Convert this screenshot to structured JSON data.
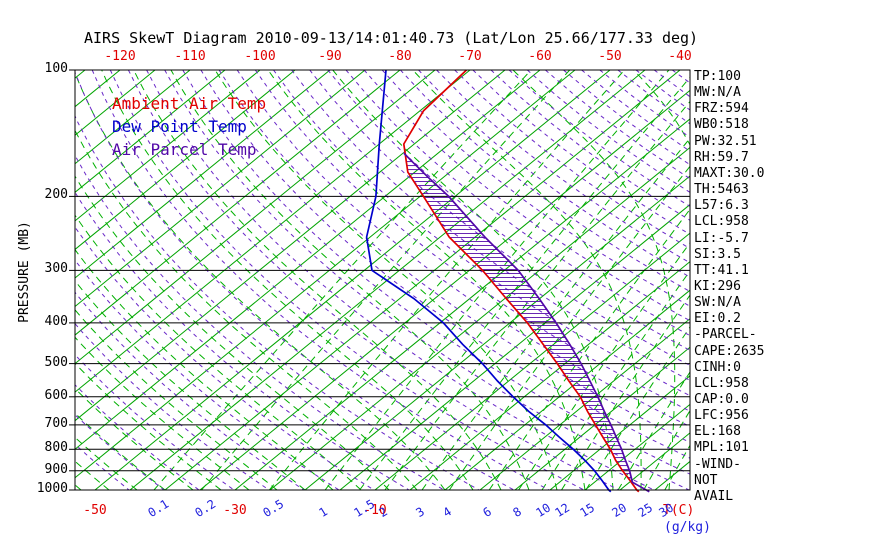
{
  "title": "AIRS SkewT Diagram 2010-09-13/14:01:40.73 (Lat/Lon 25.66/177.33 deg)",
  "colors": {
    "ambient": "#e00000",
    "dew_point": "#0000cc",
    "parcel": "#5208a8",
    "isotherm_green": "#00a400",
    "mixing_green": "#00b000",
    "dry_adiabat_purple": "#6a28c8",
    "axis_black": "#000000",
    "temp_label_red": "#e00000",
    "mixing_label_blue": "#2020dd"
  },
  "legend": {
    "items": [
      {
        "label": "Ambient Air Temp",
        "color": "#e00000"
      },
      {
        "label": "Dew Point Temp",
        "color": "#0000cc"
      },
      {
        "label": "Air Parcel Temp",
        "color": "#5208a8"
      }
    ]
  },
  "y_axis": {
    "title": "PRESSURE (MB)"
  },
  "bottom_axis": {
    "temp_unit_label": "T(C)",
    "mixing_unit_label": "(g/kg)"
  },
  "stats_panel": {
    "lines": [
      "TP:100",
      "MW:N/A",
      "FRZ:594",
      "WB0:518",
      "PW:32.51",
      "RH:59.7",
      "MAXT:30.0",
      "TH:5463",
      "L57:6.3",
      "LCL:958",
      "LI:-5.7",
      "SI:3.5",
      "TT:41.1",
      "KI:296",
      "SW:N/A",
      "EI:0.2",
      "-PARCEL-",
      "CAPE:2635",
      "CINH:0",
      "LCL:958",
      "CAP:0.0",
      "LFC:956",
      "EL:168",
      "MPL:101",
      "-WIND-",
      "NOT",
      "AVAIL"
    ]
  },
  "chart_data": {
    "type": "line",
    "title": "AIRS SkewT Diagram 2010-09-13/14:01:40.73 (Lat/Lon 25.66/177.33 deg)",
    "x_axis_label": "T(C)",
    "y_axis_label": "PRESSURE (MB)",
    "y_scale": "log10",
    "pressure_levels_mb": [
      100,
      200,
      300,
      400,
      500,
      600,
      700,
      800,
      900,
      1000
    ],
    "top_axis_temps_C": [
      -120,
      -110,
      -100,
      -90,
      -80,
      -70,
      -60,
      -50,
      -40
    ],
    "bottom_axis_temps_C": [
      -50,
      -30,
      -10
    ],
    "isotherms_C": {
      "min": -125,
      "max": 35,
      "step": 5
    },
    "dry_adiabats_theta_K": {
      "min": 228,
      "max": 463,
      "step": 5
    },
    "moist_adiabats_thetaw_C": {
      "min": -52,
      "max": 56,
      "step": 4
    },
    "mixing_ratio_g_kg": {
      "labeled": [
        0.1,
        0.2,
        0.5,
        1,
        1.5,
        2,
        3,
        4,
        6,
        8,
        10,
        12,
        15,
        20,
        25,
        30
      ],
      "unlabeled": [
        40
      ]
    },
    "cape_hatch_pressure_range_mb": [
      955,
      162
    ],
    "series": [
      {
        "name": "Ambient Air Temp",
        "color": "#e00000",
        "points_p_T": [
          [
            1010,
            28
          ],
          [
            1000,
            27.4
          ],
          [
            950,
            24.8
          ],
          [
            900,
            22
          ],
          [
            850,
            19.2
          ],
          [
            800,
            16.5
          ],
          [
            750,
            13.4
          ],
          [
            700,
            10.1
          ],
          [
            650,
            6.6
          ],
          [
            600,
            3
          ],
          [
            550,
            -1.4
          ],
          [
            500,
            -6.1
          ],
          [
            450,
            -11.5
          ],
          [
            400,
            -17.5
          ],
          [
            350,
            -24.8
          ],
          [
            300,
            -33.1
          ],
          [
            250,
            -43.7
          ],
          [
            200,
            -54.5
          ],
          [
            175,
            -61
          ],
          [
            150,
            -66.5
          ],
          [
            125,
            -69.5
          ],
          [
            100,
            -70.5
          ]
        ]
      },
      {
        "name": "Dew Point Temp",
        "color": "#0000cc",
        "points_p_T": [
          [
            1010,
            24
          ],
          [
            1000,
            23.4
          ],
          [
            950,
            20.8
          ],
          [
            900,
            18
          ],
          [
            850,
            14.8
          ],
          [
            800,
            11.2
          ],
          [
            750,
            7.2
          ],
          [
            700,
            3
          ],
          [
            650,
            -1.8
          ],
          [
            600,
            -6.6
          ],
          [
            550,
            -11.6
          ],
          [
            500,
            -16.8
          ],
          [
            450,
            -23
          ],
          [
            400,
            -29.5
          ],
          [
            350,
            -38
          ],
          [
            300,
            -48.9
          ],
          [
            250,
            -55.5
          ],
          [
            200,
            -61.3
          ],
          [
            150,
            -70
          ],
          [
            100,
            -82
          ]
        ]
      },
      {
        "name": "Air Parcel Temp",
        "color": "#5208a8",
        "points_p_T": [
          [
            1010,
            29.5
          ],
          [
            958,
            25.4
          ],
          [
            900,
            23
          ],
          [
            850,
            20.6
          ],
          [
            800,
            18.1
          ],
          [
            750,
            15.3
          ],
          [
            700,
            12.3
          ],
          [
            650,
            9
          ],
          [
            600,
            5.5
          ],
          [
            550,
            1.6
          ],
          [
            500,
            -2.7
          ],
          [
            450,
            -7.7
          ],
          [
            400,
            -13.4
          ],
          [
            350,
            -20.1
          ],
          [
            300,
            -28
          ],
          [
            250,
            -38.6
          ],
          [
            200,
            -50.9
          ],
          [
            180,
            -57.2
          ],
          [
            165,
            -62.3
          ],
          [
            158,
            -64.8
          ]
        ]
      }
    ]
  }
}
